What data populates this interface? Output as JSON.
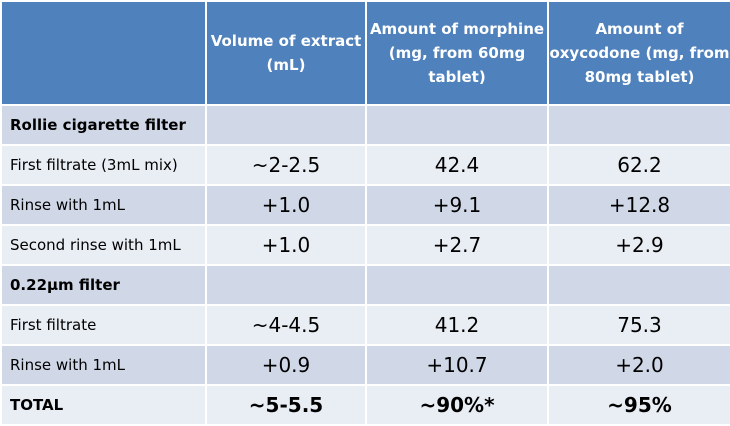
{
  "header": {
    "col1": "Volume of extract (mL)",
    "col2": "Amount of morphine (mg, from 60mg tablet)",
    "col3": "Amount of oxycodone (mg, from 80mg tablet)"
  },
  "rows": [
    {
      "label": "Rollie cigarette filter",
      "c1": "",
      "c2": "",
      "c3": ""
    },
    {
      "label": "First filtrate (3mL mix)",
      "c1": "~2-2.5",
      "c2": "42.4",
      "c3": "62.2"
    },
    {
      "label": "Rinse with 1mL",
      "c1": "+1.0",
      "c2": "+9.1",
      "c3": "+12.8"
    },
    {
      "label": "Second rinse with 1mL",
      "c1": "+1.0",
      "c2": "+2.7",
      "c3": "+2.9"
    },
    {
      "label": "0.22µm filter",
      "c1": "",
      "c2": "",
      "c3": ""
    },
    {
      "label": "First filtrate",
      "c1": "~4-4.5",
      "c2": "41.2",
      "c3": "75.3"
    },
    {
      "label": "Rinse with 1mL",
      "c1": "+0.9",
      "c2": "+10.7",
      "c3": "+2.0"
    },
    {
      "label": "TOTAL",
      "c1": "~5-5.5",
      "c2": "~90%*",
      "c3": "~95%"
    }
  ],
  "colors": {
    "header_bg": "#4f81bd",
    "row_dark": "#d0d8e8",
    "row_light": "#e9edf4"
  }
}
